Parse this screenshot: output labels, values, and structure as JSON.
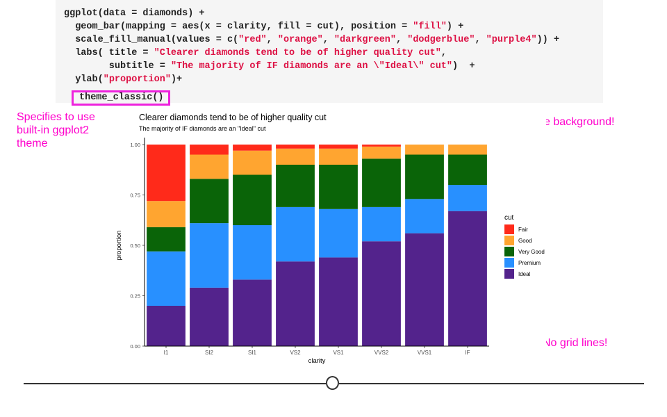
{
  "code": {
    "lines": [
      [
        {
          "t": "ggplot(data = diamonds) +"
        }
      ],
      [
        {
          "t": "  geom_bar(mapping = aes(x = clarity, fill = cut), position = "
        },
        {
          "t": "\"fill\"",
          "s": true
        },
        {
          "t": ") +"
        }
      ],
      [
        {
          "t": "  scale_fill_manual(values = c("
        },
        {
          "t": "\"red\"",
          "s": true
        },
        {
          "t": ", "
        },
        {
          "t": "\"orange\"",
          "s": true
        },
        {
          "t": ", "
        },
        {
          "t": "\"darkgreen\"",
          "s": true
        },
        {
          "t": ", "
        },
        {
          "t": "\"dodgerblue\"",
          "s": true
        },
        {
          "t": ", "
        },
        {
          "t": "\"purple4\"",
          "s": true
        },
        {
          "t": ")) +"
        }
      ],
      [
        {
          "t": "  labs( title = "
        },
        {
          "t": "\"Clearer diamonds tend to be of higher quality cut\"",
          "s": true
        },
        {
          "t": ","
        }
      ],
      [
        {
          "t": "        subtitle = "
        },
        {
          "t": "\"The majority of IF diamonds are an \\\"Ideal\\\" cut\"",
          "s": true
        },
        {
          "t": ")  +"
        }
      ],
      [
        {
          "t": "  ylab("
        },
        {
          "t": "\"proportion\"",
          "s": true
        },
        {
          "t": ")+"
        }
      ]
    ],
    "highlighted_line": "theme_classic()"
  },
  "annotations": {
    "theme_note": "Specifies to use\nbuilt-in ggplot2\ntheme",
    "white_background": "White background!",
    "no_grid": "No grid lines!"
  },
  "colors": {
    "accent": "#ff00cc",
    "string": "#dd1144",
    "code_bg": "#f5f5f5"
  },
  "chart_data": {
    "type": "bar",
    "stacked": true,
    "title": "Clearer diamonds tend to be of higher quality cut",
    "subtitle": "The majority of IF diamonds are an \"Ideal\" cut",
    "xlabel": "clarity",
    "ylabel": "proportion",
    "ylim": [
      0,
      1
    ],
    "yticks": [
      "0.00",
      "0.25",
      "0.50",
      "0.75",
      "1.00"
    ],
    "grid": false,
    "legend_position": "right",
    "legend_title": "cut",
    "categories": [
      "I1",
      "SI2",
      "SI1",
      "VS2",
      "VS1",
      "VVS2",
      "VVS1",
      "IF"
    ],
    "series": [
      {
        "name": "Fair",
        "color": "#ff2a1a",
        "values": [
          0.28,
          0.05,
          0.03,
          0.02,
          0.02,
          0.01,
          0.0,
          0.0
        ]
      },
      {
        "name": "Good",
        "color": "#ffa530",
        "values": [
          0.13,
          0.12,
          0.12,
          0.08,
          0.08,
          0.06,
          0.05,
          0.05
        ]
      },
      {
        "name": "Very Good",
        "color": "#0a6408",
        "values": [
          0.12,
          0.22,
          0.25,
          0.21,
          0.22,
          0.24,
          0.22,
          0.15
        ]
      },
      {
        "name": "Premium",
        "color": "#2890ff",
        "values": [
          0.27,
          0.32,
          0.27,
          0.27,
          0.24,
          0.17,
          0.17,
          0.13
        ]
      },
      {
        "name": "Ideal",
        "color": "#53238c",
        "values": [
          0.2,
          0.29,
          0.33,
          0.42,
          0.44,
          0.52,
          0.56,
          0.67
        ]
      }
    ]
  }
}
